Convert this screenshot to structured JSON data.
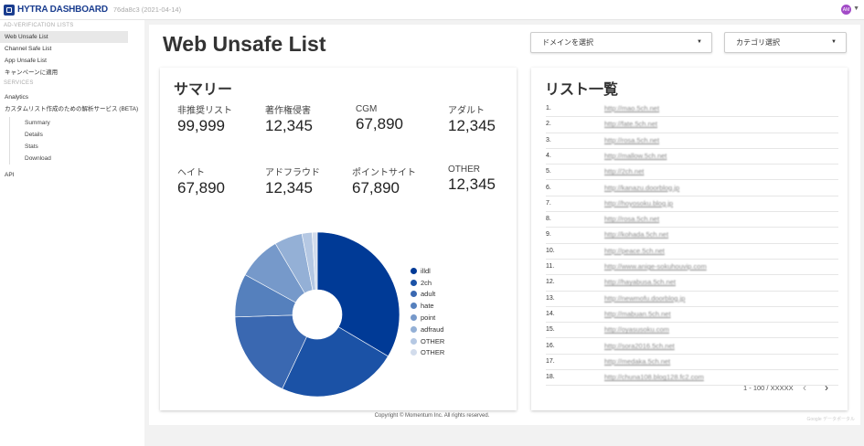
{
  "header": {
    "logo_text": "HYTRA DASHBOARD",
    "version": "76da8c3 (2021-04-14)",
    "avatar_initials": "AM"
  },
  "sidebar": {
    "section1": "AD-VERIFICATION LISTS",
    "items": [
      {
        "label": "Web Unsafe List"
      },
      {
        "label": "Channel Safe List"
      },
      {
        "label": "App Unsafe List"
      },
      {
        "label": "キャンペーンに適用"
      }
    ],
    "section2": "SERVICES",
    "services": [
      {
        "label": "Analytics"
      },
      {
        "label": "カスタムリスト作成のための解析サービス (BETA)"
      }
    ],
    "subitems": [
      {
        "label": "Summary"
      },
      {
        "label": "Details"
      },
      {
        "label": "Stats"
      },
      {
        "label": "Download"
      }
    ],
    "api_label": "API"
  },
  "main": {
    "title": "Web Unsafe List",
    "domain_dropdown": "ドメインを選択",
    "category_dropdown": "カテゴリ選択"
  },
  "summary": {
    "title": "サマリー",
    "metrics": [
      {
        "label": "非推奨リスト",
        "value": "99,999"
      },
      {
        "label": "著作権侵害",
        "value": "12,345"
      },
      {
        "label": "CGM",
        "value": "67,890"
      },
      {
        "label": "アダルト",
        "value": "12,345"
      },
      {
        "label": "ヘイト",
        "value": "67,890"
      },
      {
        "label": "アドフラウド",
        "value": "12,345"
      },
      {
        "label": "ポイントサイト",
        "value": "67,890"
      },
      {
        "label": "OTHER",
        "value": "12,345"
      }
    ]
  },
  "chart_data": {
    "type": "pie",
    "categories": [
      "illdl",
      "2ch",
      "adult",
      "hate",
      "point",
      "adfraud",
      "OTHER",
      "OTHER"
    ],
    "values": [
      33.5,
      23.5,
      17.5,
      8.5,
      8.5,
      5.5,
      2.0,
      1.0
    ],
    "colors": [
      "#003a96",
      "#1b52a6",
      "#3a68b1",
      "#5580bd",
      "#7699ca",
      "#94b0d6",
      "#b5c8e3",
      "#d2dcec"
    ],
    "legend_position": "right",
    "donut": true
  },
  "list": {
    "title": "リスト一覧",
    "rows": [
      {
        "num": "1.",
        "url": "http://mao.5ch.net"
      },
      {
        "num": "2.",
        "url": "http://fate.5ch.net"
      },
      {
        "num": "3.",
        "url": "http://rosa.5ch.net"
      },
      {
        "num": "4.",
        "url": "http://mallow.5ch.net"
      },
      {
        "num": "5.",
        "url": "http://2ch.net"
      },
      {
        "num": "6.",
        "url": "http://kanazu.doorblog.jp"
      },
      {
        "num": "7.",
        "url": "http://hoyosoku.blog.jp"
      },
      {
        "num": "8.",
        "url": "http://rosa.5ch.net"
      },
      {
        "num": "9.",
        "url": "http://kohada.5ch.net"
      },
      {
        "num": "10.",
        "url": "http://peace.5ch.net"
      },
      {
        "num": "11.",
        "url": "http://www.anige-sokuhouvip.com"
      },
      {
        "num": "12.",
        "url": "http://hayabusa.5ch.net"
      },
      {
        "num": "13.",
        "url": "http://newmofu.doorblog.jp"
      },
      {
        "num": "14.",
        "url": "http://mabuan.5ch.net"
      },
      {
        "num": "15.",
        "url": "http://oyasusoku.com"
      },
      {
        "num": "16.",
        "url": "http://sora2016.5ch.net"
      },
      {
        "num": "17.",
        "url": "http://medaka.5ch.net"
      },
      {
        "num": "18.",
        "url": "http://chuna108.blog128.fc2.com"
      }
    ],
    "pagination": "1 - 100 / XXXXX"
  },
  "footer": {
    "copyright": "Copyright © Momentum Inc. All rights reserved.",
    "powered": "Google データポータル"
  }
}
